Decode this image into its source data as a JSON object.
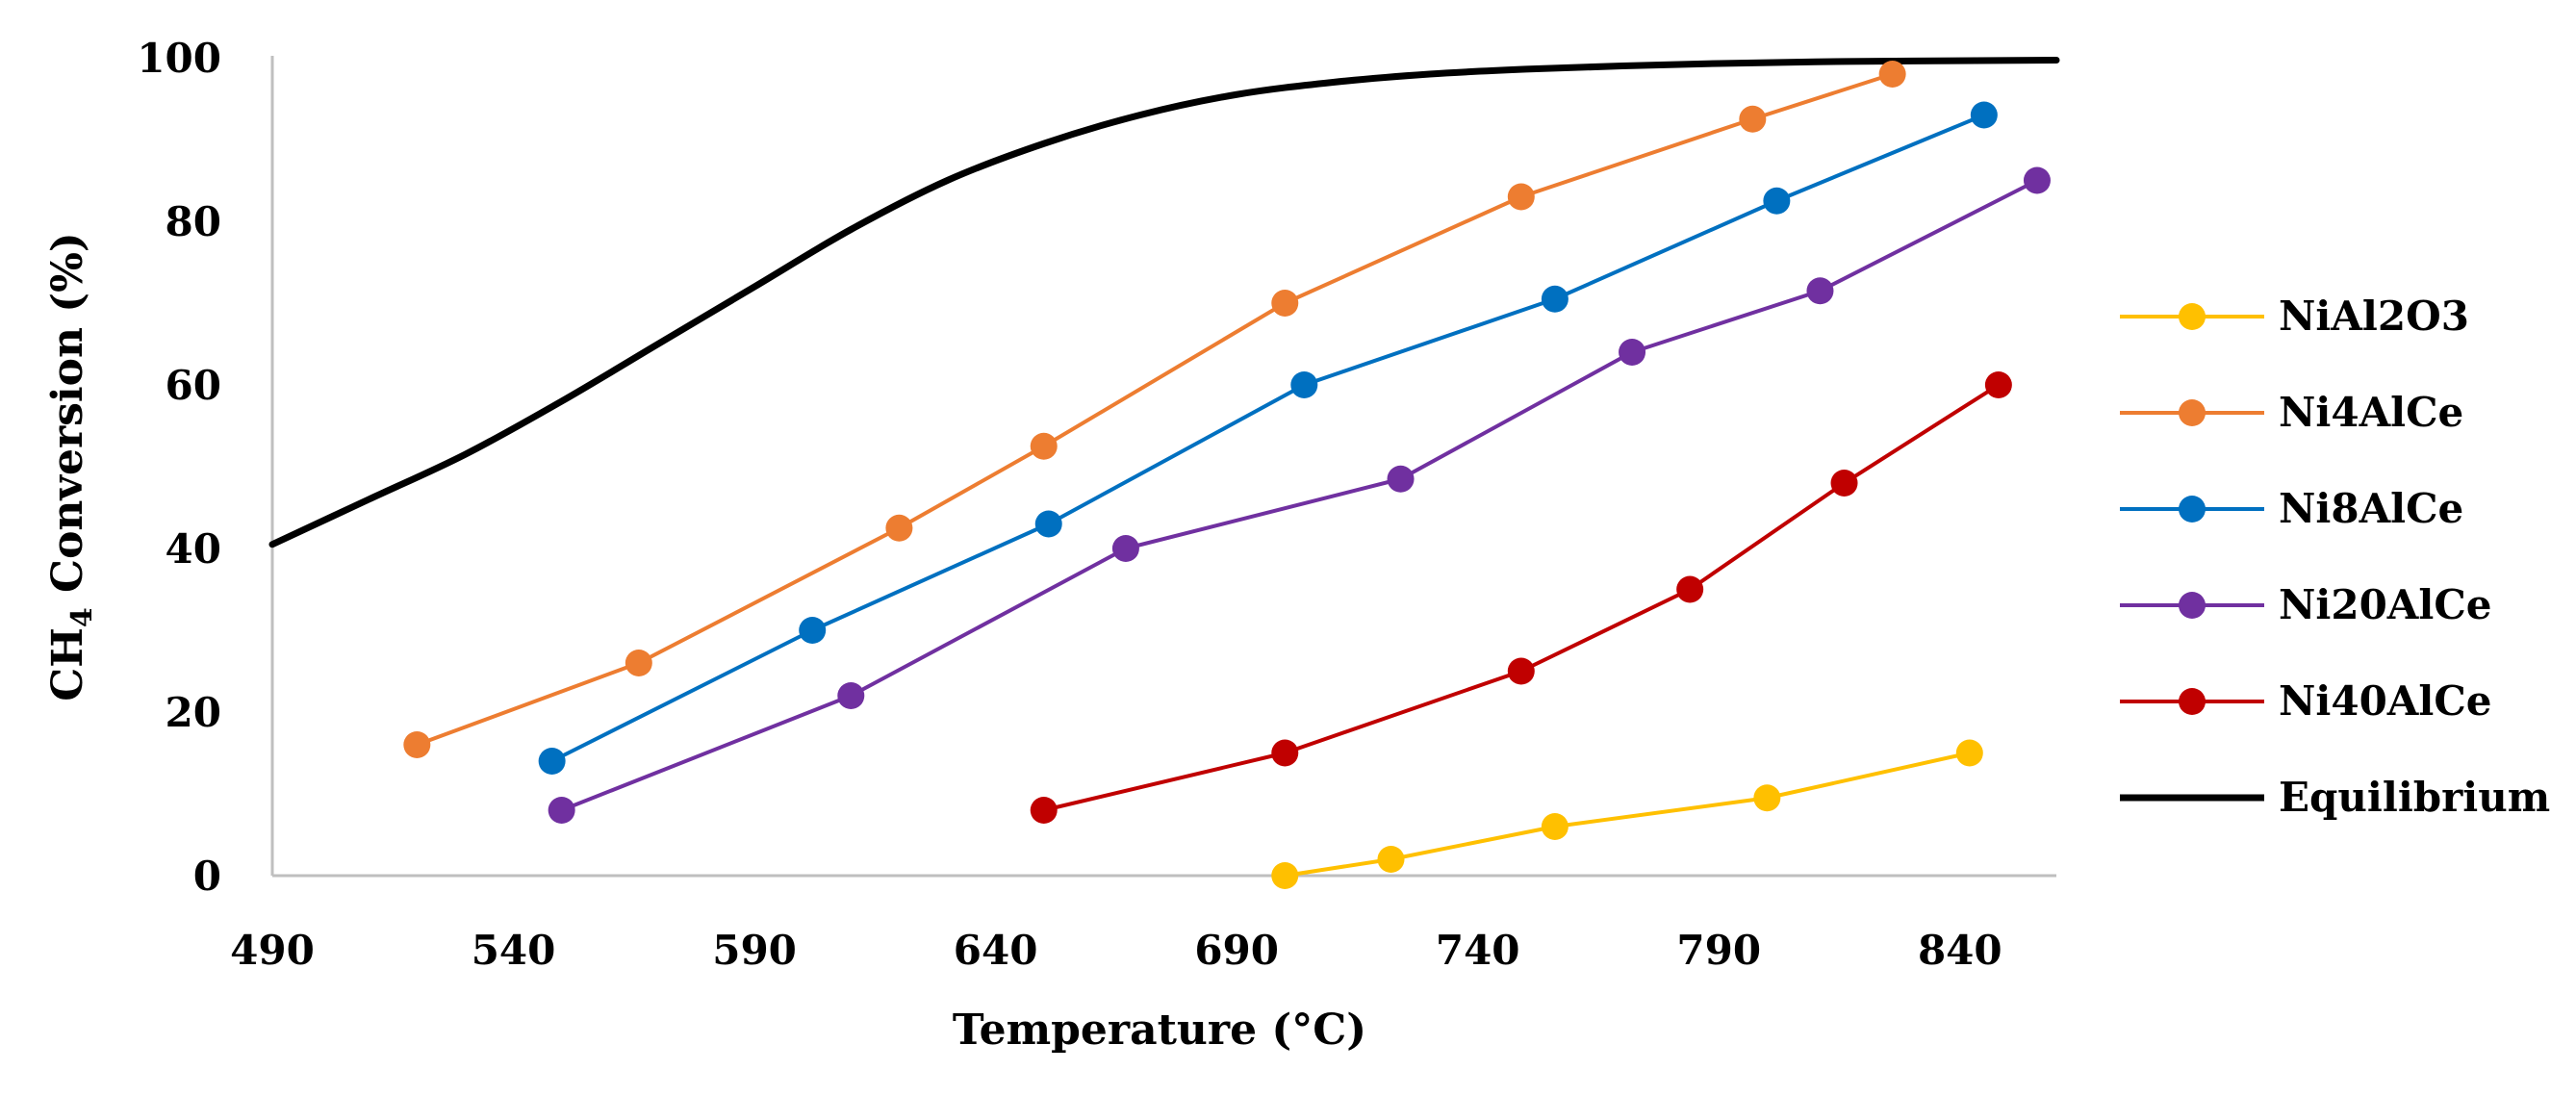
{
  "chart_data": {
    "type": "line",
    "title": "",
    "xlabel": "Temperature (°C)",
    "ylabel_main": "CH",
    "ylabel_sub": "4",
    "ylabel_rest": " Conversion (%)",
    "xlim": [
      490,
      860
    ],
    "ylim": [
      0,
      100
    ],
    "x_ticks": [
      490,
      540,
      590,
      640,
      690,
      740,
      790,
      840
    ],
    "y_ticks": [
      0,
      20,
      40,
      60,
      80,
      100
    ],
    "legend_position": "right",
    "series": [
      {
        "name": "NiAl2O3",
        "color": "#FFC000",
        "markers": true,
        "x": [
          700,
          722,
          756,
          800,
          842
        ],
        "y": [
          0,
          2,
          6,
          9.5,
          15
        ]
      },
      {
        "name": "Ni4AlCe",
        "color": "#ED7D31",
        "markers": true,
        "x": [
          520,
          566,
          620,
          650,
          700,
          749,
          797,
          826
        ],
        "y": [
          16,
          26,
          42.5,
          52.5,
          70,
          83,
          92.5,
          98
        ]
      },
      {
        "name": "Ni8AlCe",
        "color": "#0070C0",
        "markers": true,
        "x": [
          548,
          602,
          651,
          704,
          756,
          802,
          845
        ],
        "y": [
          14,
          30,
          43,
          60,
          70.5,
          82.5,
          93
        ]
      },
      {
        "name": "Ni20AlCe",
        "color": "#7030A0",
        "markers": true,
        "x": [
          550,
          610,
          667,
          724,
          772,
          811,
          856
        ],
        "y": [
          8,
          22,
          40,
          48.5,
          64,
          71.5,
          85
        ]
      },
      {
        "name": "Ni40AlCe",
        "color": "#C00000",
        "markers": true,
        "x": [
          650,
          700,
          749,
          784,
          816,
          848
        ],
        "y": [
          8,
          15,
          25,
          35,
          48,
          60
        ]
      },
      {
        "name": "Equilibrium",
        "color": "#000000",
        "markers": false,
        "x": [
          490,
          510,
          530,
          550,
          570,
          590,
          610,
          630,
          650,
          670,
          690,
          710,
          730,
          750,
          770,
          790,
          810,
          830,
          860
        ],
        "y": [
          40.5,
          46,
          51.5,
          58,
          65,
          72,
          79,
          85,
          89.5,
          93,
          95.5,
          97,
          98,
          98.6,
          99,
          99.3,
          99.5,
          99.6,
          99.7
        ]
      }
    ]
  }
}
